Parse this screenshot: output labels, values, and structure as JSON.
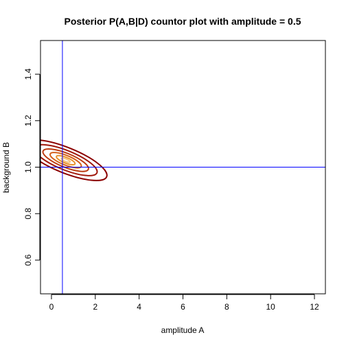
{
  "chart_data": {
    "type": "contour",
    "title": "Posterior P(A,B|D) countor plot with amplitude  = 0.5",
    "xlabel": "amplitude A",
    "ylabel": "background B",
    "xlim": [
      -0.5,
      12.5
    ],
    "ylim": [
      0.455,
      1.545
    ],
    "x_ticks": [
      0,
      2,
      4,
      6,
      8,
      10,
      12
    ],
    "y_ticks": [
      0.6,
      0.8,
      1.0,
      1.2,
      1.4
    ],
    "x_tick_labels": [
      "0",
      "2",
      "4",
      "6",
      "8",
      "10",
      "12"
    ],
    "y_tick_labels": [
      "0.6",
      "0.8",
      "1.0",
      "1.2",
      "1.4"
    ],
    "reference_lines": {
      "vertical_x": 0.5,
      "horizontal_y": 1.0,
      "color": "#0000ff"
    },
    "contour_center": {
      "x": 0.65,
      "y": 1.03
    },
    "contours": [
      {
        "a": 0.58,
        "b": 0.19,
        "color": "#8b0000"
      },
      {
        "a": 0.44,
        "b": 0.145,
        "color": "#a0180c"
      },
      {
        "a": 0.32,
        "b": 0.105,
        "color": "#bb3a10"
      },
      {
        "a": 0.22,
        "b": 0.072,
        "color": "#d4601a"
      },
      {
        "a": 0.13,
        "b": 0.043,
        "color": "#e8902a"
      },
      {
        "a": 0.06,
        "b": 0.02,
        "color": "#f5c27a"
      }
    ],
    "contour_tilt_deg": -68
  }
}
